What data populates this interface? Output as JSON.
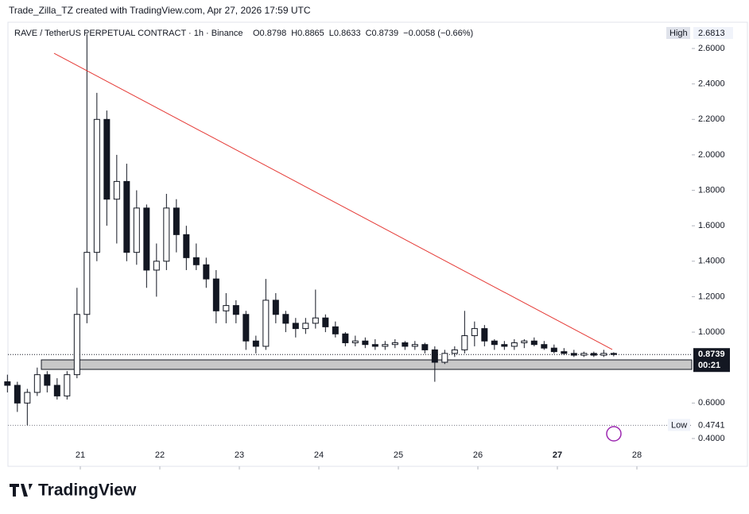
{
  "header": {
    "credit": "Trade_Zilla_TZ created with TradingView.com, Apr 27, 2026 17:59 UTC",
    "brand": "TradingView"
  },
  "chart_data": {
    "type": "candlestick",
    "title": "RAVE / TetherUS PERPETUAL CONTRACT · 1h · Binance",
    "legend_values": [
      "O0.8798",
      "H0.8865",
      "L0.8633",
      "C0.8739",
      "−0.0058 (−0.66%)"
    ],
    "x": [
      2,
      5,
      8,
      11,
      14,
      17,
      20,
      23,
      26,
      29,
      32,
      35,
      38,
      41,
      44,
      47,
      50,
      53,
      56,
      59,
      62,
      65,
      68,
      71,
      74,
      77,
      80,
      83,
      86,
      89,
      92,
      95,
      98,
      101,
      104,
      107,
      110,
      113,
      116,
      119,
      122,
      125,
      128,
      131,
      134,
      137,
      140,
      143,
      146,
      149,
      152,
      155,
      158,
      161,
      164,
      167,
      170,
      173,
      176,
      179,
      182,
      185
    ],
    "open": [
      0.72,
      0.7,
      0.6,
      0.66,
      0.76,
      0.7,
      0.64,
      0.76,
      1.1,
      1.45,
      2.2,
      1.75,
      1.85,
      1.45,
      1.7,
      1.35,
      1.4,
      1.7,
      1.55,
      1.42,
      1.38,
      1.3,
      1.12,
      1.15,
      1.1,
      0.95,
      0.92,
      1.18,
      1.1,
      1.05,
      1.02,
      1.05,
      1.08,
      1.03,
      0.99,
      0.94,
      0.95,
      0.93,
      0.92,
      0.93,
      0.94,
      0.92,
      0.93,
      0.9,
      0.83,
      0.88,
      0.9,
      0.98,
      1.02,
      0.95,
      0.93,
      0.92,
      0.94,
      0.95,
      0.93,
      0.91,
      0.89,
      0.88,
      0.87,
      0.88,
      0.87,
      0.88
    ],
    "high": [
      0.76,
      0.72,
      0.68,
      0.8,
      0.78,
      0.74,
      0.78,
      1.25,
      2.6813,
      2.35,
      2.25,
      2.0,
      1.95,
      1.8,
      1.72,
      1.5,
      1.78,
      1.75,
      1.6,
      1.5,
      1.42,
      1.35,
      1.22,
      1.18,
      1.12,
      0.98,
      1.3,
      1.22,
      1.12,
      1.08,
      1.08,
      1.24,
      1.1,
      1.06,
      1.0,
      0.98,
      0.97,
      0.96,
      0.95,
      0.96,
      0.95,
      0.95,
      0.94,
      0.92,
      0.9,
      0.92,
      1.12,
      1.06,
      1.04,
      0.96,
      0.95,
      0.96,
      0.96,
      0.97,
      0.95,
      0.93,
      0.91,
      0.9,
      0.89,
      0.89,
      0.9,
      0.8865
    ],
    "low": [
      0.66,
      0.55,
      0.4741,
      0.64,
      0.66,
      0.62,
      0.62,
      0.74,
      1.05,
      1.4,
      1.6,
      1.5,
      1.4,
      1.38,
      1.25,
      1.2,
      1.35,
      1.45,
      1.35,
      1.35,
      1.25,
      1.05,
      1.05,
      1.05,
      0.9,
      0.88,
      0.9,
      1.05,
      1.0,
      0.97,
      0.99,
      1.02,
      1.0,
      0.97,
      0.92,
      0.92,
      0.91,
      0.9,
      0.9,
      0.91,
      0.9,
      0.9,
      0.88,
      0.72,
      0.82,
      0.86,
      0.88,
      0.92,
      0.92,
      0.9,
      0.9,
      0.9,
      0.91,
      0.92,
      0.9,
      0.88,
      0.87,
      0.86,
      0.86,
      0.86,
      0.86,
      0.8633
    ],
    "close": [
      0.7,
      0.6,
      0.66,
      0.76,
      0.7,
      0.64,
      0.76,
      1.1,
      1.45,
      2.2,
      1.75,
      1.85,
      1.45,
      1.7,
      1.35,
      1.4,
      1.7,
      1.55,
      1.42,
      1.38,
      1.3,
      1.12,
      1.15,
      1.1,
      0.95,
      0.92,
      1.18,
      1.1,
      1.05,
      1.02,
      1.05,
      1.08,
      1.03,
      0.99,
      0.94,
      0.95,
      0.93,
      0.92,
      0.93,
      0.94,
      0.92,
      0.93,
      0.9,
      0.83,
      0.88,
      0.9,
      0.98,
      1.02,
      0.95,
      0.93,
      0.92,
      0.94,
      0.95,
      0.93,
      0.91,
      0.89,
      0.88,
      0.87,
      0.88,
      0.87,
      0.88,
      0.8739
    ],
    "up_color": "#ffffff",
    "down_color": "#131722",
    "xlim": [
      2.16,
      208.56
    ],
    "xticks": [
      {
        "value": 24,
        "label": "21"
      },
      {
        "value": 48,
        "label": "22"
      },
      {
        "value": 72,
        "label": "23"
      },
      {
        "value": 96,
        "label": "24"
      },
      {
        "value": 120,
        "label": "25"
      },
      {
        "value": 144,
        "label": "26"
      },
      {
        "value": 168,
        "label": "27"
      },
      {
        "value": 192,
        "label": "28"
      }
    ],
    "ylim": [
      0.243,
      2.748
    ],
    "yticks": [
      {
        "value": 0.4,
        "label": "0.4000"
      },
      {
        "value": 0.6,
        "label": "0.6000"
      },
      {
        "value": 1.0,
        "label": "1.0000"
      },
      {
        "value": 1.2,
        "label": "1.2000"
      },
      {
        "value": 1.4,
        "label": "1.4000"
      },
      {
        "value": 1.6,
        "label": "1.6000"
      },
      {
        "value": 1.8,
        "label": "1.8000"
      },
      {
        "value": 2.0,
        "label": "2.0000"
      },
      {
        "value": 2.2,
        "label": "2.2000"
      },
      {
        "value": 2.4,
        "label": "2.4000"
      },
      {
        "value": 2.6,
        "label": "2.6000"
      }
    ],
    "high_label": {
      "label": "High",
      "value": 2.6813
    },
    "low_label": {
      "label": "Low",
      "value": 0.4741
    },
    "last_price": {
      "value": 0.8739,
      "countdown": "00:21"
    },
    "trendline": {
      "x": [
        16.08,
        184.56
      ],
      "y": [
        2.573,
        0.902
      ],
      "color": "#e53935"
    },
    "zone": {
      "x": [
        12.24,
        208.56
      ],
      "y": [
        0.7898,
        0.8435
      ],
      "color": "#c8c8c8"
    }
  }
}
